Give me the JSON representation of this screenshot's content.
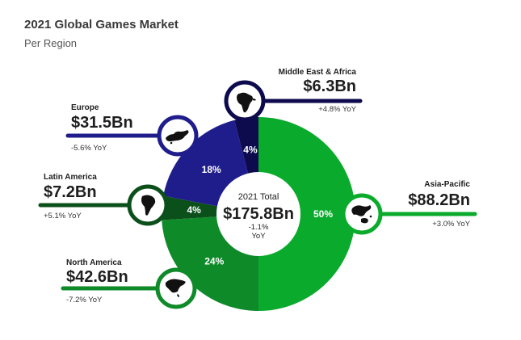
{
  "chart_data": {
    "type": "pie",
    "title": "2021 Global Games Market",
    "subtitle": "Per Region",
    "center": {
      "title": "2021 Total",
      "value": "$175.8Bn",
      "yoy": "-1.1%",
      "yoy_unit": "YoY"
    },
    "slices": [
      {
        "name": "Asia-Pacific",
        "share": 50,
        "share_label": "50%",
        "value_label": "$88.2Bn",
        "revenue_bn": 88.2,
        "yoy": "+3.0% YoY",
        "color": "#0aab2c",
        "icon": "asia-pacific-map-icon"
      },
      {
        "name": "North America",
        "share": 24,
        "share_label": "24%",
        "value_label": "$42.6Bn",
        "revenue_bn": 42.6,
        "yoy": "-7.2% YoY",
        "color": "#0e8a29",
        "icon": "north-america-map-icon"
      },
      {
        "name": "Latin America",
        "share": 4,
        "share_label": "4%",
        "value_label": "$7.2Bn",
        "revenue_bn": 7.2,
        "yoy": "+5.1% YoY",
        "color": "#0b4f1a",
        "icon": "south-america-map-icon"
      },
      {
        "name": "Europe",
        "share": 18,
        "share_label": "18%",
        "value_label": "$31.5Bn",
        "revenue_bn": 31.5,
        "yoy": "-5.6% YoY",
        "color": "#1f1d8c",
        "icon": "europe-map-icon"
      },
      {
        "name": "Middle East & Africa",
        "share": 4,
        "share_label": "4%",
        "value_label": "$6.3Bn",
        "revenue_bn": 6.3,
        "yoy": "+4.8% YoY",
        "color": "#0d0a4d",
        "icon": "africa-map-icon"
      }
    ]
  }
}
